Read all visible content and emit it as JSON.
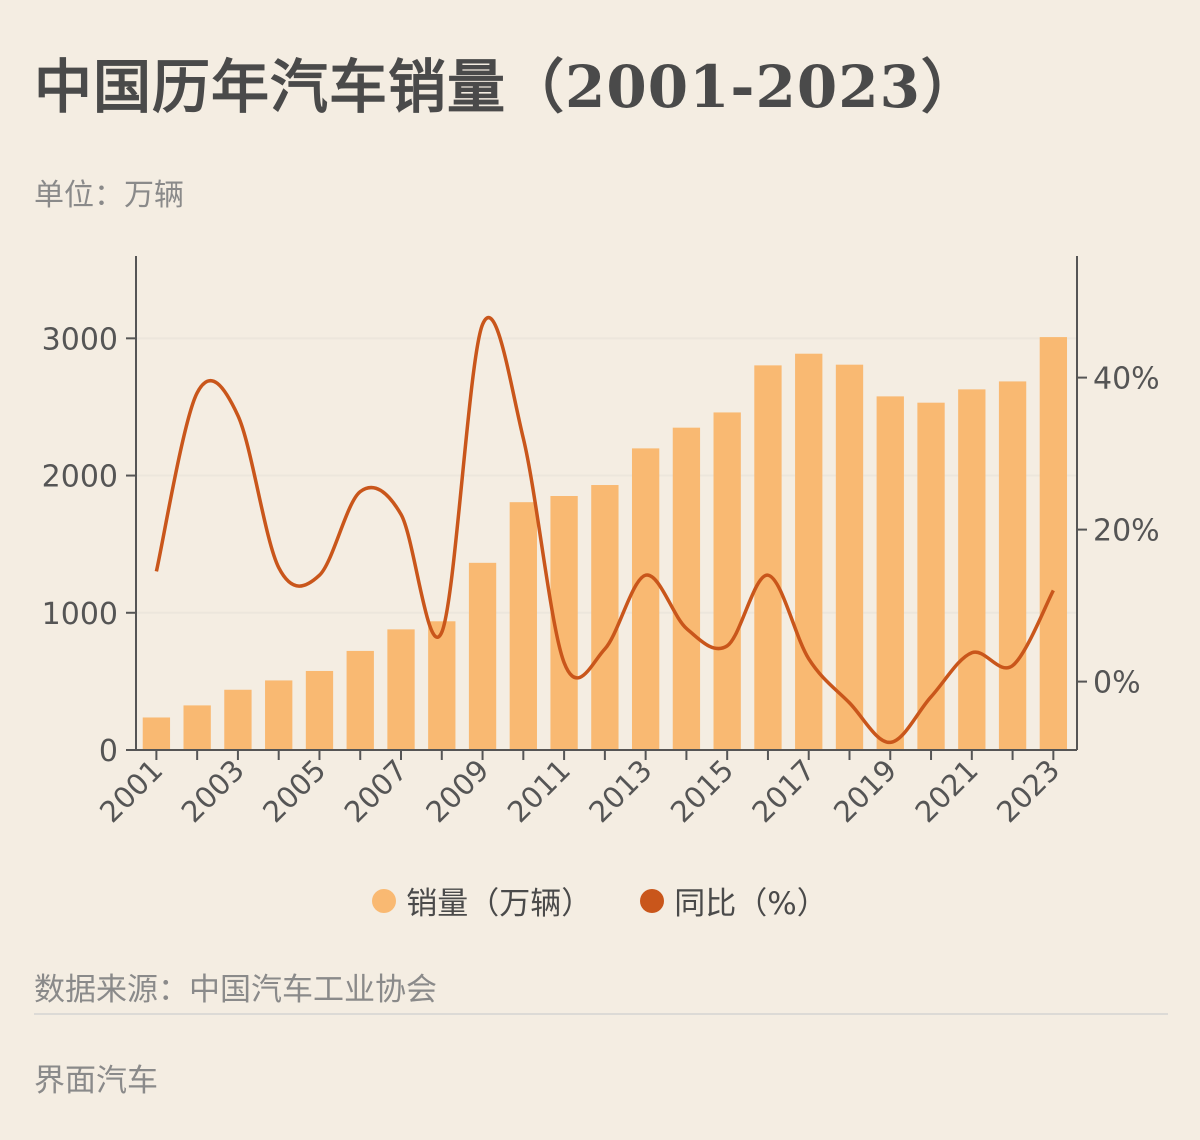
{
  "header": {
    "title": "中国历年汽车销量（2001-2023）",
    "unit": "单位：万辆"
  },
  "footer": {
    "source": "数据来源：中国汽车工业协会",
    "brand": "界面汽车"
  },
  "colors": {
    "bar": "#f9b972",
    "line": "#c9561b",
    "axis": "#555555",
    "grid": "#ece6dc",
    "tick_text": "#555555"
  },
  "chart_data": {
    "type": "bar",
    "title": "中国历年汽车销量（2001-2023）",
    "xlabel": "",
    "ylabel": "万辆",
    "ylim": [
      0,
      3600
    ],
    "y2lim": [
      -9,
      56
    ],
    "left_ticks": [
      "0",
      "1000",
      "2000",
      "3000"
    ],
    "left_tick_values": [
      0,
      1000,
      2000,
      3000
    ],
    "right_ticks": [
      "0%",
      "20%",
      "40%"
    ],
    "right_tick_values": [
      0,
      20,
      40
    ],
    "categories": [
      "2001",
      "2002",
      "2003",
      "2004",
      "2005",
      "2006",
      "2007",
      "2008",
      "2009",
      "2010",
      "2011",
      "2012",
      "2013",
      "2014",
      "2015",
      "2016",
      "2017",
      "2018",
      "2019",
      "2020",
      "2021",
      "2022",
      "2023"
    ],
    "x_tick_labels": [
      "2001",
      "2003",
      "2005",
      "2007",
      "2009",
      "2011",
      "2013",
      "2015",
      "2017",
      "2019",
      "2021",
      "2023"
    ],
    "series": [
      {
        "name": "销量（万辆）",
        "type": "bar",
        "axis": "left",
        "values": [
          237,
          325,
          439,
          507,
          576,
          722,
          879,
          938,
          1364,
          1806,
          1851,
          1931,
          2198,
          2349,
          2460,
          2803,
          2888,
          2808,
          2577,
          2531,
          2628,
          2686,
          3009
        ]
      },
      {
        "name": "同比（%）",
        "type": "line",
        "axis": "right",
        "values": [
          14.5,
          38,
          35,
          15,
          14,
          25,
          22,
          6.5,
          47,
          32,
          2.5,
          4.3,
          14,
          7,
          4.7,
          14,
          3,
          -2.8,
          -8,
          -2,
          3.8,
          2.1,
          12
        ]
      }
    ],
    "legend": [
      "销量（万辆）",
      "同比（%）"
    ],
    "legend_position": "bottom"
  }
}
